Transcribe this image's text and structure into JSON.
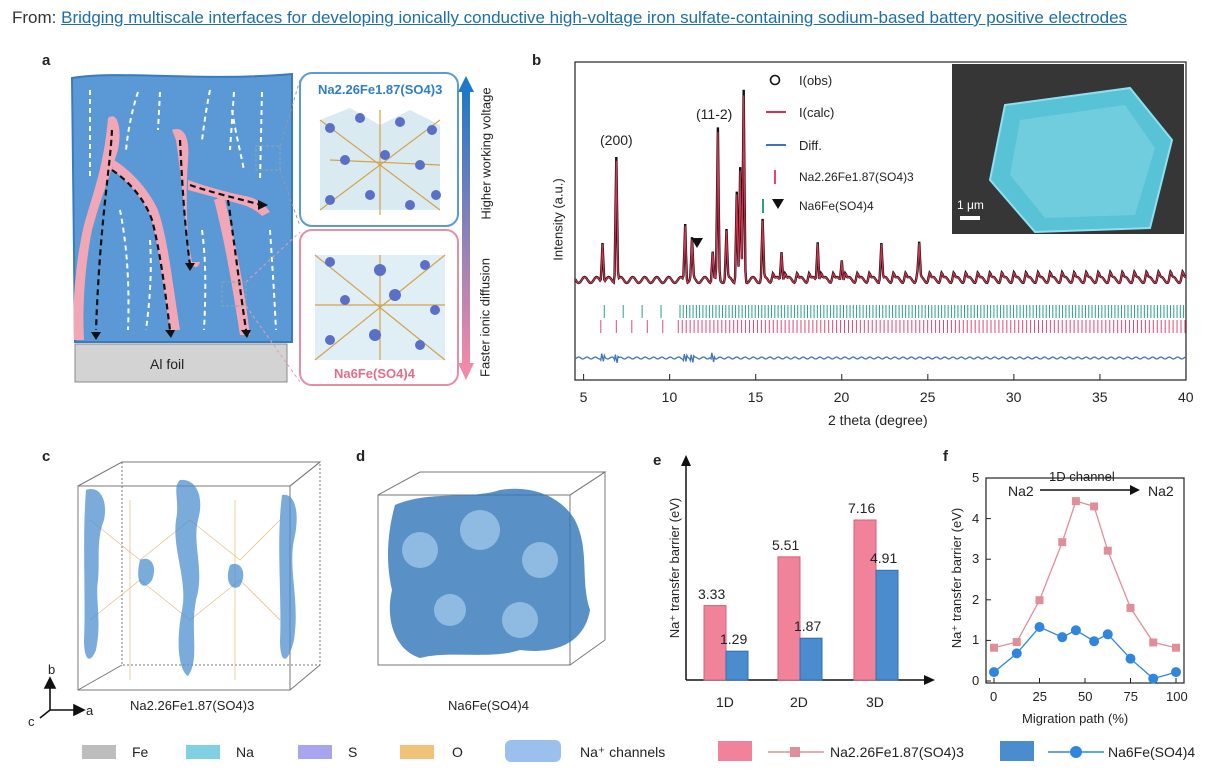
{
  "header": {
    "from_label": "From:",
    "title": "Bridging multiscale interfaces for developing ionically conductive high-voltage iron sulfate-containing sodium-based battery positive electrodes"
  },
  "panels": {
    "a": "a",
    "b": "b",
    "c": "c",
    "d": "d",
    "e": "e",
    "f": "f"
  },
  "panel_a": {
    "foil_label": "Al foil",
    "top_crystal": "Na2.26Fe1.87(SO4)3",
    "bottom_crystal": "Na6Fe(SO4)4",
    "arrow_up_label": "Higher working voltage",
    "arrow_down_label": "Faster ionic diffusion",
    "colors": {
      "electrode": "#4f8fd0",
      "channel": "#f2a5b5",
      "foil": "#d0d0d0"
    }
  },
  "panel_b": {
    "ylabel": "Intensity (a.u.)",
    "xlabel": "2 theta (degree)",
    "peak_200": "(200)",
    "peak_112": "(11-2)",
    "legend": {
      "obs": "I(obs)",
      "calc": "I(calc)",
      "diff": "Diff.",
      "phase1": "Na2.26Fe1.87(SO4)3",
      "phase2": "Na6Fe(SO4)4"
    },
    "scale_bar": "1 μm",
    "x_ticks": [
      "5",
      "10",
      "15",
      "20",
      "25",
      "30",
      "35",
      "40"
    ]
  },
  "panel_c": {
    "formula": "Na2.26Fe1.87(SO4)3",
    "axes": {
      "b": "b",
      "a": "a",
      "c": "c"
    }
  },
  "panel_d": {
    "formula": "Na6Fe(SO4)4"
  },
  "chart_data": [
    {
      "type": "bar",
      "panel": "e",
      "ylabel": "Na⁺ transfer barrier (eV)",
      "categories": [
        "1D",
        "2D",
        "3D"
      ],
      "series": [
        {
          "name": "Na2.26Fe1.87(SO4)3",
          "values": [
            3.33,
            5.51,
            7.16
          ],
          "color": "#f0839a"
        },
        {
          "name": "Na6Fe(SO4)4",
          "values": [
            1.29,
            1.87,
            4.91
          ],
          "color": "#4a8ccd"
        }
      ],
      "value_labels": [
        "3.33",
        "5.51",
        "7.16",
        "1.29",
        "1.87",
        "4.91"
      ],
      "ylim": [
        0,
        9
      ]
    },
    {
      "type": "line",
      "panel": "f",
      "ylabel": "Na⁺ transfer barrier (eV)",
      "xlabel": "Migration path (%)",
      "annotation": {
        "left": "Na2",
        "middle": "1D channel",
        "right": "Na2"
      },
      "x_ticks": [
        "0",
        "25",
        "50",
        "75",
        "100"
      ],
      "y_ticks": [
        "0",
        "1",
        "2",
        "3",
        "4",
        "5"
      ],
      "xlim": [
        0,
        100
      ],
      "ylim": [
        0,
        5
      ],
      "series": [
        {
          "name": "Na2.26Fe1.87(SO4)3",
          "color": "#e08f99",
          "x": [
            0,
            12.5,
            25,
            37.5,
            45,
            55,
            62.5,
            75,
            87.5,
            100
          ],
          "y": [
            0.82,
            0.96,
            1.99,
            3.42,
            4.43,
            4.3,
            3.21,
            1.8,
            0.95,
            0.82
          ]
        },
        {
          "name": "Na6Fe(SO4)4",
          "color": "#2f86dc",
          "x": [
            0,
            12.5,
            25,
            37.5,
            45,
            55,
            62.5,
            75,
            87.5,
            100
          ],
          "y": [
            0.22,
            0.68,
            1.33,
            1.08,
            1.25,
            0.98,
            1.15,
            0.55,
            0.06,
            0.22
          ]
        }
      ]
    }
  ],
  "legend": {
    "fe": "Fe",
    "na": "Na",
    "s": "S",
    "o": "O",
    "channels": "Na⁺ channels",
    "series1": "Na2.26Fe1.87(SO4)3",
    "series2": "Na6Fe(SO4)4",
    "colors": {
      "fe": "#bdbdbd",
      "na": "#7fd0e3",
      "s": "#a8a4ee",
      "o": "#f0c27a",
      "channels": "#9cc0ee"
    }
  }
}
